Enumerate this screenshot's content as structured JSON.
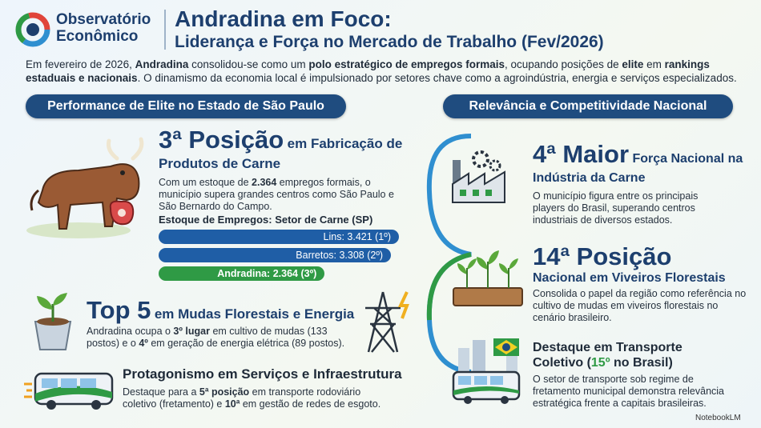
{
  "header": {
    "logo_line1": "Observatório",
    "logo_line2": "Econômico",
    "title": "Andradina em Foco:",
    "subtitle": "Liderança e Força no Mercado de Trabalho (Fev/2026)"
  },
  "intro": [
    "Em fevereiro de 2026, ",
    "Andradina",
    " consolidou-se como um ",
    "polo estratégico de empregos formais",
    ", ocupando posições de ",
    "elite",
    " em ",
    "rankings estaduais e nacionais",
    ". O dinamismo da economia local é impulsionado por setores chave como a agroindústria, energia e serviços especializados."
  ],
  "left": {
    "heading": "Performance de Elite no Estado de São Paulo",
    "rank_big": "3ª Posição",
    "rank_rest": "em Fabricação de Produtos de Carne",
    "rank_body": [
      "Com um estoque de ",
      "2.364",
      " empregos formais, o município supera grandes centros como São Paulo e São Bernardo do Campo."
    ],
    "top_big": "Top 5",
    "top_rest": "em Mudas Florestais e Energia",
    "top_body": [
      "Andradina ocupa o ",
      "3º lugar",
      " em cultivo de mudas (133 postos) e o ",
      "4º",
      " em geração de energia elétrica (89 postos)."
    ],
    "services_title": "Protagonismo em Serviços e Infraestrutura",
    "services_body": [
      "Destaque para a ",
      "5ª posição",
      " em transporte rodoviário coletivo (fretamento) e ",
      "10ª",
      " em gestão de redes de esgoto."
    ]
  },
  "chart_data": {
    "type": "bar",
    "title": "Estoque de Empregos: Setor de Carne (SP)",
    "values": [
      3421,
      3308,
      2364
    ],
    "value_labels": [
      "Lins: 3.421 (1º)",
      "Barretos: 3.308 (2º)",
      "Andradina: 2.364 (3º)"
    ],
    "colors": [
      "#1f5ea6",
      "#1f5ea6",
      "#2f9a45"
    ]
  },
  "right": {
    "heading": "Relevância e Competitividade Nacional",
    "meat_big": "4ª Maior",
    "meat_rest": "Força Nacional na Indústria da Carne",
    "meat_body": "O município figura entre os principais players do Brasil, superando centros industriais de diversos estados.",
    "nursery_big": "14ª Posição",
    "nursery_rest": "Nacional em Viveiros Florestais",
    "nursery_body": "Consolida o papel da região como referência no cultivo de mudas em viveiros florestais no cenário brasileiro.",
    "transport_title": [
      "Destaque em Transporte Coletivo (",
      "15º",
      " no Brasil)"
    ],
    "transport_body": "O setor de transporte sob regime de fretamento municipal demonstra relevância estratégica frente a capitais brasileiras."
  },
  "footer": "NotebookLM"
}
